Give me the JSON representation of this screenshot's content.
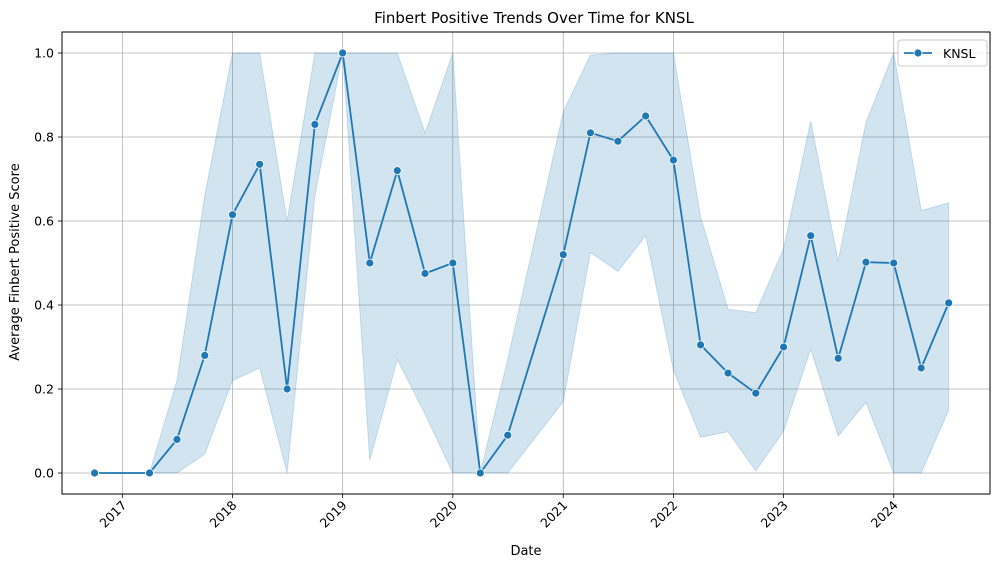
{
  "chart_data": {
    "type": "line",
    "title": "Finbert Positive Trends Over Time for KNSL",
    "xlabel": "Date",
    "ylabel": "Average Finbert Positive Score",
    "x_tick_labels": [
      "2017",
      "2018",
      "2019",
      "2020",
      "2021",
      "2022",
      "2023",
      "2024"
    ],
    "y_tick_labels": [
      "0.0",
      "0.2",
      "0.4",
      "0.6",
      "0.8",
      "1.0"
    ],
    "ylim": [
      -0.05,
      1.05
    ],
    "xlim": [
      "2016-06-15",
      "2024-11-15"
    ],
    "grid": true,
    "legend_position": "top-right",
    "line_color": "#1f77b4",
    "band_color": "#1f77b4",
    "series": [
      {
        "name": "KNSL",
        "points": [
          {
            "x": "2016-10-01",
            "y": 0.0,
            "lo": 0.0,
            "hi": 0.0
          },
          {
            "x": "2017-04-01",
            "y": 0.0,
            "lo": 0.0,
            "hi": 0.0
          },
          {
            "x": "2017-07-01",
            "y": 0.08,
            "lo": 0.0,
            "hi": 0.22
          },
          {
            "x": "2017-10-01",
            "y": 0.28,
            "lo": 0.045,
            "hi": 0.66
          },
          {
            "x": "2018-01-01",
            "y": 0.615,
            "lo": 0.22,
            "hi": 1.0
          },
          {
            "x": "2018-04-01",
            "y": 0.735,
            "lo": 0.25,
            "hi": 1.0
          },
          {
            "x": "2018-07-01",
            "y": 0.2,
            "lo": 0.0,
            "hi": 0.6
          },
          {
            "x": "2018-10-01",
            "y": 0.83,
            "lo": 0.66,
            "hi": 1.0
          },
          {
            "x": "2019-01-01",
            "y": 1.0,
            "lo": 1.0,
            "hi": 1.0
          },
          {
            "x": "2019-04-01",
            "y": 0.5,
            "lo": 0.03,
            "hi": 1.0
          },
          {
            "x": "2019-07-01",
            "y": 0.72,
            "lo": 0.27,
            "hi": 1.0
          },
          {
            "x": "2019-10-01",
            "y": 0.475,
            "lo": 0.14,
            "hi": 0.81
          },
          {
            "x": "2020-01-01",
            "y": 0.5,
            "lo": 0.0,
            "hi": 1.0
          },
          {
            "x": "2020-04-01",
            "y": 0.0,
            "lo": 0.0,
            "hi": 0.0
          },
          {
            "x": "2020-07-01",
            "y": 0.09,
            "lo": 0.0,
            "hi": 0.27
          },
          {
            "x": "2021-01-01",
            "y": 0.52,
            "lo": 0.17,
            "hi": 0.86
          },
          {
            "x": "2021-04-01",
            "y": 0.81,
            "lo": 0.525,
            "hi": 0.995
          },
          {
            "x": "2021-07-01",
            "y": 0.79,
            "lo": 0.48,
            "hi": 1.0
          },
          {
            "x": "2021-10-01",
            "y": 0.85,
            "lo": 0.565,
            "hi": 1.0
          },
          {
            "x": "2022-01-01",
            "y": 0.745,
            "lo": 0.245,
            "hi": 1.0
          },
          {
            "x": "2022-04-01",
            "y": 0.305,
            "lo": 0.085,
            "hi": 0.61
          },
          {
            "x": "2022-07-01",
            "y": 0.238,
            "lo": 0.098,
            "hi": 0.39
          },
          {
            "x": "2022-10-01",
            "y": 0.19,
            "lo": 0.005,
            "hi": 0.382
          },
          {
            "x": "2023-01-01",
            "y": 0.3,
            "lo": 0.1,
            "hi": 0.535
          },
          {
            "x": "2023-04-01",
            "y": 0.565,
            "lo": 0.295,
            "hi": 0.838
          },
          {
            "x": "2023-07-01",
            "y": 0.273,
            "lo": 0.088,
            "hi": 0.505
          },
          {
            "x": "2023-10-01",
            "y": 0.502,
            "lo": 0.168,
            "hi": 0.835
          },
          {
            "x": "2024-01-01",
            "y": 0.5,
            "lo": 0.0,
            "hi": 1.0
          },
          {
            "x": "2024-04-01",
            "y": 0.25,
            "lo": 0.0,
            "hi": 0.625
          },
          {
            "x": "2024-07-01",
            "y": 0.405,
            "lo": 0.15,
            "hi": 0.643
          }
        ]
      }
    ]
  }
}
